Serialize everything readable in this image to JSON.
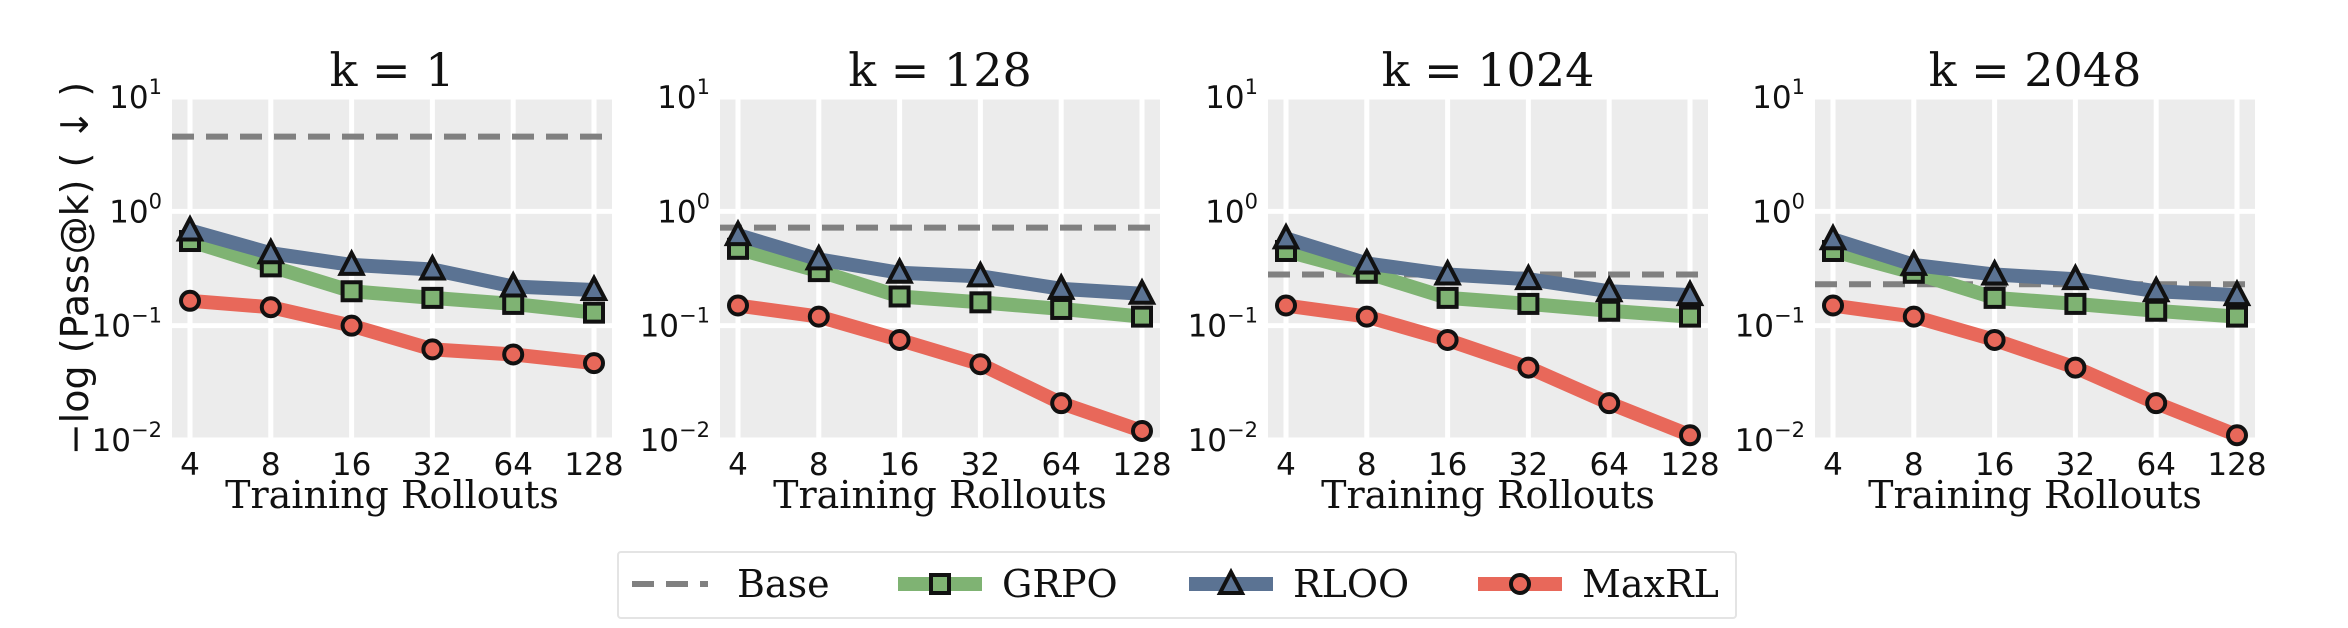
{
  "chart_data": {
    "type": "line",
    "y_scale": "log",
    "ylabel": "−log (Pass@k) ( ↓ )",
    "xlabel": "Training Rollouts",
    "categories": [
      "4",
      "8",
      "16",
      "32",
      "64",
      "128"
    ],
    "y_ticks": [
      {
        "value": 10,
        "base": "10",
        "exp": "1"
      },
      {
        "value": 1,
        "base": "10",
        "exp": "0"
      },
      {
        "value": 0.1,
        "base": "10",
        "exp": "−1"
      },
      {
        "value": 0.01,
        "base": "10",
        "exp": "−2"
      }
    ],
    "ylim": [
      0.01,
      10
    ],
    "colors": {
      "Base": "#808080",
      "GRPO": "#7fb373",
      "RLOO": "#5b7393",
      "MaxRL": "#e8685a"
    },
    "legend": {
      "placement": "bottom-center",
      "entries": [
        "Base",
        "GRPO",
        "RLOO",
        "MaxRL"
      ]
    },
    "panels": [
      {
        "title": "k = 1",
        "series": [
          {
            "name": "Base",
            "style": "dashed",
            "values": [
              4.5,
              4.5,
              4.5,
              4.5,
              4.5,
              4.5
            ]
          },
          {
            "name": "GRPO",
            "marker": "square",
            "values": [
              0.55,
              0.33,
              0.2,
              0.175,
              0.155,
              0.13
            ]
          },
          {
            "name": "RLOO",
            "marker": "triangle",
            "values": [
              0.68,
              0.43,
              0.34,
              0.31,
              0.22,
              0.205
            ]
          },
          {
            "name": "MaxRL",
            "marker": "circle",
            "values": [
              0.165,
              0.145,
              0.1,
              0.062,
              0.056,
              0.047
            ]
          }
        ]
      },
      {
        "title": "k = 128",
        "series": [
          {
            "name": "Base",
            "style": "dashed",
            "values": [
              0.72,
              0.72,
              0.72,
              0.72,
              0.72,
              0.72
            ]
          },
          {
            "name": "GRPO",
            "marker": "square",
            "values": [
              0.47,
              0.3,
              0.18,
              0.16,
              0.14,
              0.12
            ]
          },
          {
            "name": "RLOO",
            "marker": "triangle",
            "values": [
              0.62,
              0.38,
              0.29,
              0.27,
              0.21,
              0.19
            ]
          },
          {
            "name": "MaxRL",
            "marker": "circle",
            "values": [
              0.15,
              0.12,
              0.075,
              0.046,
              0.021,
              0.012
            ]
          }
        ]
      },
      {
        "title": "k = 1024",
        "series": [
          {
            "name": "Base",
            "style": "dashed",
            "values": [
              0.28,
              0.28,
              0.28,
              0.28,
              0.28,
              0.28
            ]
          },
          {
            "name": "GRPO",
            "marker": "square",
            "values": [
              0.45,
              0.29,
              0.175,
              0.155,
              0.135,
              0.12
            ]
          },
          {
            "name": "RLOO",
            "marker": "triangle",
            "values": [
              0.58,
              0.35,
              0.28,
              0.255,
              0.2,
              0.185
            ]
          },
          {
            "name": "MaxRL",
            "marker": "circle",
            "values": [
              0.15,
              0.12,
              0.075,
              0.043,
              0.021,
              0.011
            ]
          }
        ]
      },
      {
        "title": "k = 2048",
        "series": [
          {
            "name": "Base",
            "style": "dashed",
            "values": [
              0.23,
              0.23,
              0.23,
              0.23,
              0.23,
              0.23
            ]
          },
          {
            "name": "GRPO",
            "marker": "square",
            "values": [
              0.45,
              0.29,
              0.175,
              0.155,
              0.135,
              0.12
            ]
          },
          {
            "name": "RLOO",
            "marker": "triangle",
            "values": [
              0.57,
              0.34,
              0.28,
              0.255,
              0.2,
              0.185
            ]
          },
          {
            "name": "MaxRL",
            "marker": "circle",
            "values": [
              0.15,
              0.12,
              0.075,
              0.043,
              0.021,
              0.011
            ]
          }
        ]
      }
    ]
  }
}
